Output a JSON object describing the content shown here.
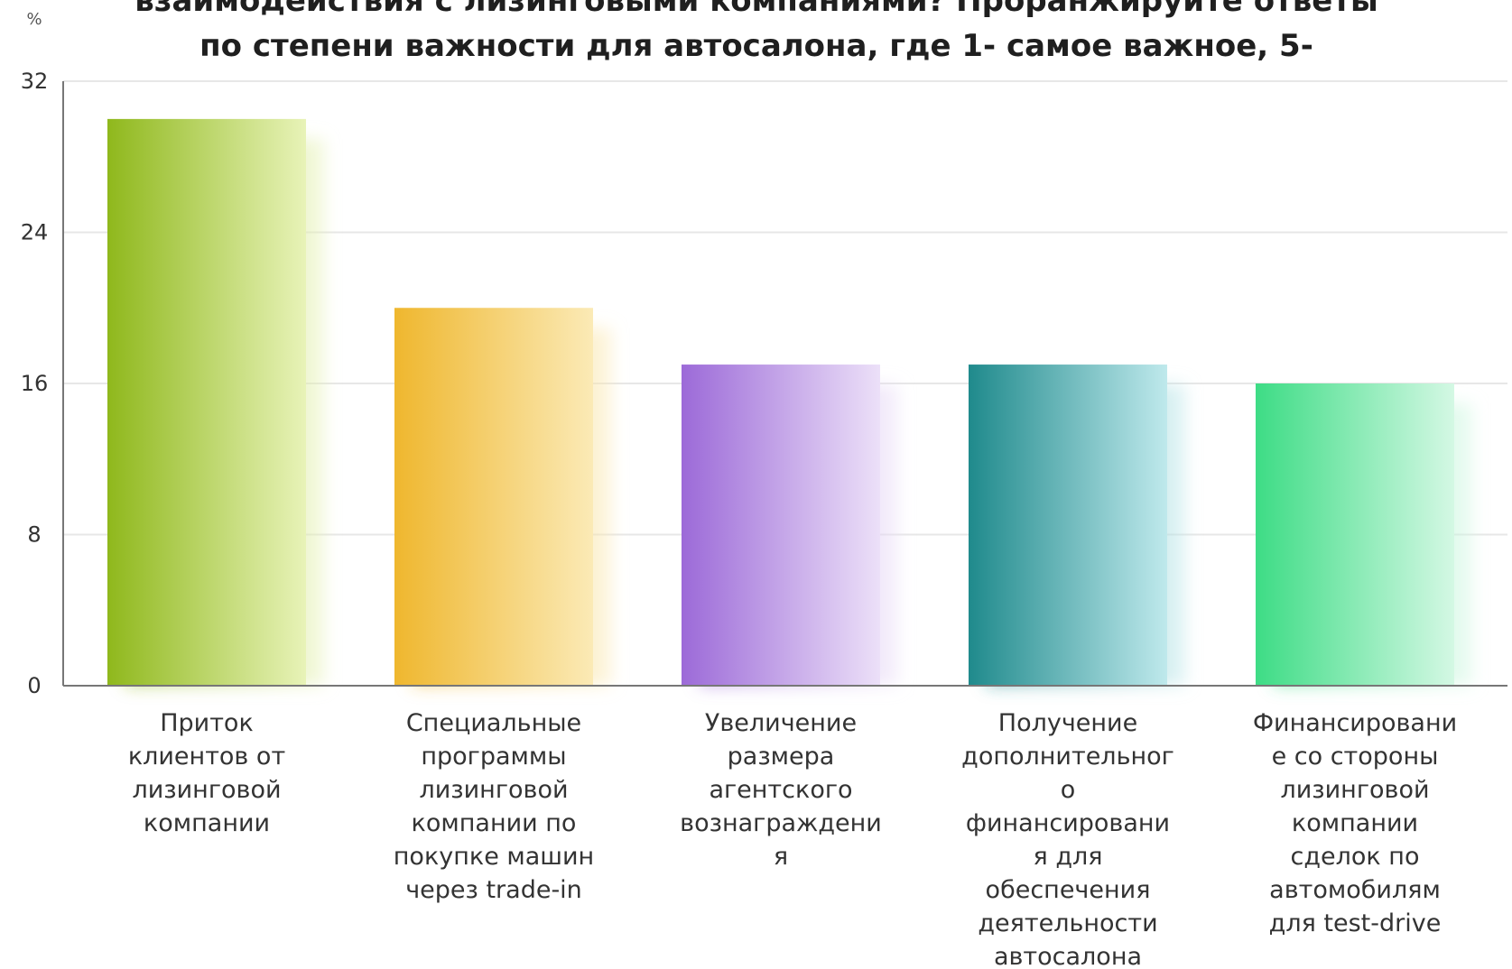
{
  "chart_data": {
    "type": "bar",
    "title_lines": [
      "взаимодействия с лизинговыми компаниями? Проранжируйте ответы",
      "по степени важности для автосалона, где 1- самое важное, 5-"
    ],
    "ylabel": "%",
    "ylim": [
      0,
      32
    ],
    "yticks": [
      0,
      8,
      16,
      24,
      32
    ],
    "grid": true,
    "categories": [
      [
        "Приток",
        "клиентов от",
        "лизинговой",
        "компании"
      ],
      [
        "Специальные",
        "программы",
        "лизинговой",
        "компании по",
        "покупке машин",
        "через trade-in"
      ],
      [
        "Увеличение",
        "размера",
        "агентского",
        "вознаграждени",
        "я"
      ],
      [
        "Получение",
        "дополнительног",
        "о",
        "финансировани",
        "я для",
        "обеспечения",
        "деятельности",
        "автосалона"
      ],
      [
        "Финансировани",
        "е со стороны",
        "лизинговой",
        "компании",
        "сделок по",
        "автомобилям",
        "для test-drive"
      ]
    ],
    "values": [
      30,
      20,
      17,
      17,
      16
    ],
    "colors": [
      [
        "#8fb81c",
        "#e8f3b8"
      ],
      [
        "#efb72e",
        "#fbeab6"
      ],
      [
        "#9c6ad8",
        "#ece0f8"
      ],
      [
        "#1f8a8c",
        "#bfe9ec"
      ],
      [
        "#3ddc85",
        "#d4f8e4"
      ]
    ]
  }
}
